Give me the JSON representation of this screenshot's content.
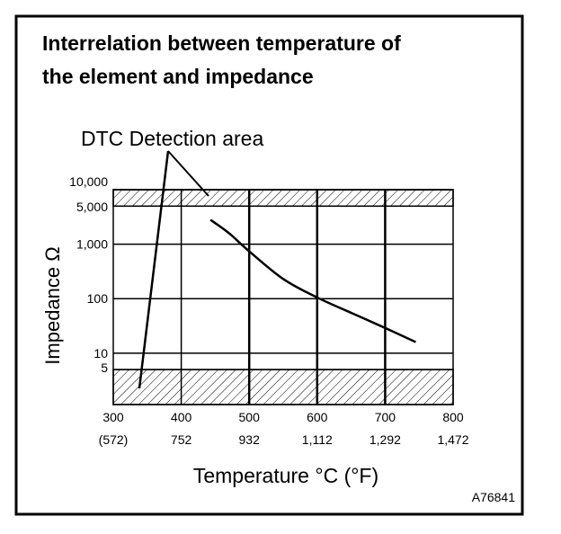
{
  "chart_data": {
    "type": "line",
    "title_lines": [
      "Interrelation between temperature of",
      "the element and impedance"
    ],
    "xlabel": "Temperature °C (°F)",
    "ylabel": "Impedance Ω",
    "x_scale": "linear",
    "y_scale": "log",
    "xlim": [
      300,
      800
    ],
    "ylim": [
      1.14,
      10000
    ],
    "x_ticks": [
      300,
      400,
      500,
      600,
      700,
      800
    ],
    "x_tick_labels": [
      "300",
      "400",
      "500",
      "600",
      "700",
      "800"
    ],
    "x_tick_labels_f": [
      "(572)",
      "752",
      "932",
      "1,112",
      "1,292",
      "1,472"
    ],
    "y_ticks": [
      10000,
      5000,
      1000,
      100,
      10,
      5
    ],
    "y_tick_labels": [
      "10,000",
      "5,000",
      "1,000",
      "100",
      "10",
      "5"
    ],
    "grid": true,
    "series": [
      {
        "name": "impedance",
        "x": [
          443,
          470,
          500,
          550,
          600,
          650,
          700,
          745
        ],
        "y": [
          2800,
          1600,
          740,
          230,
          105,
          55,
          29,
          16
        ]
      }
    ],
    "shaded_regions": [
      {
        "label": "DTC Detection area",
        "y_range": [
          5000,
          10000
        ]
      },
      {
        "label": "DTC Detection area",
        "y_range": [
          1.14,
          5
        ]
      }
    ],
    "annotation": "DTC Detection area",
    "figure_id": "A76841"
  }
}
